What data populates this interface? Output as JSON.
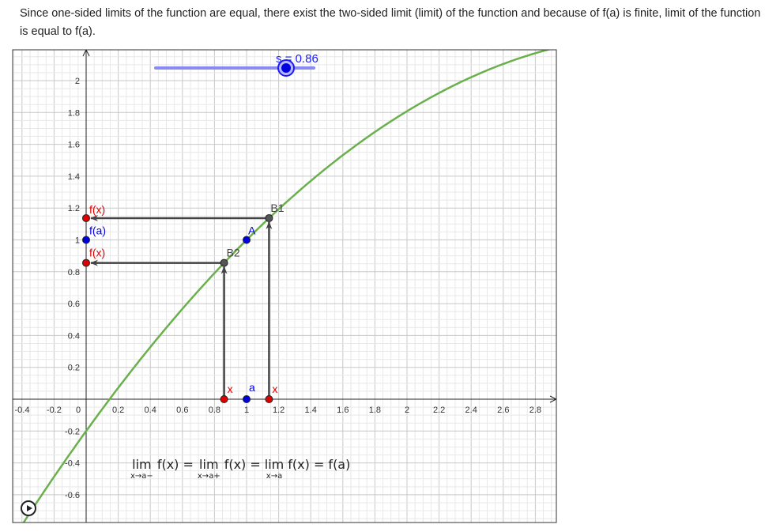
{
  "caption": "Since one-sided limits of the function are equal, there exist the two-sided limit (limit) of the function and because of f(a) is finite, limit of the function is equal to f(a).",
  "slider": {
    "label": "s = 0.86",
    "value": 0.86,
    "fraction": 0.825,
    "color": "#1a1aff"
  },
  "axes": {
    "x_ticks": [
      "-0.4",
      "-0.2",
      "0",
      "0.2",
      "0.4",
      "0.6",
      "0.8",
      "1",
      "1.2",
      "1.4",
      "1.6",
      "1.8",
      "2",
      "2.2",
      "2.4",
      "2.6",
      "2.8"
    ],
    "y_ticks": [
      "-0.6",
      "-0.4",
      "-0.2",
      "0.2",
      "0.4",
      "0.6",
      "0.8",
      "1",
      "1.2",
      "1.4",
      "1.6",
      "1.8",
      "2"
    ]
  },
  "points": {
    "A": "A",
    "B1": "B1",
    "B2": "B2",
    "a": "a",
    "x_left": "x",
    "x_right": "x",
    "fx_top": "f(x)",
    "fa": "f(a)",
    "fx_bottom": "f(x)"
  },
  "values": {
    "a": 1,
    "x_left": 0.86,
    "x_right": 1.14
  },
  "colors": {
    "curve": "#6ab04c",
    "point_red": "#e00000",
    "point_blue": "#0000e0",
    "arrow": "#444444"
  },
  "formula": {
    "lim1": "lim",
    "sub1": "x→a−",
    "f1": "f(x) =",
    "lim2": "lim",
    "sub2": "x→a+",
    "f2": "f(x) =",
    "lim3": "lim",
    "sub3": "x→a",
    "f3": "f(x) = f(a)"
  },
  "play_button": {
    "icon": "play-icon"
  }
}
